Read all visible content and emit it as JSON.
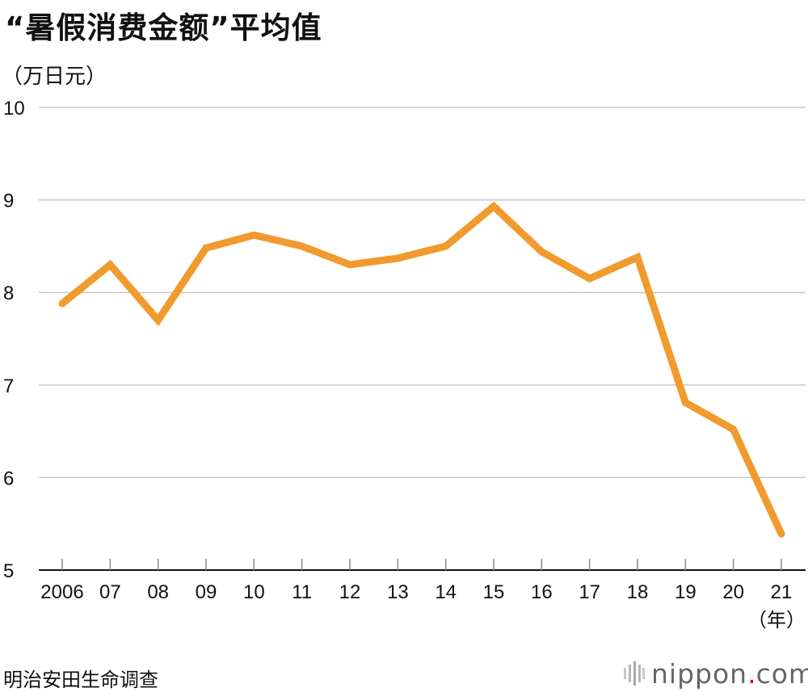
{
  "title": "“暑假消费金额”平均值",
  "unit_label": "（万日元）",
  "source": "明治安田生命调查",
  "brand": {
    "name": "nippon",
    "dot": ".",
    "tld": "com"
  },
  "colors": {
    "line": "#f19a2e",
    "grid": "#c8c8c8",
    "axis": "#111111",
    "brand_dot": "#e60012"
  },
  "chart_data": {
    "type": "line",
    "title": "“暑假消费金额”平均值",
    "ylabel": "（万日元）",
    "xlabel": "（年）",
    "ylim": [
      5,
      10
    ],
    "yticks": [
      5,
      6,
      7,
      8,
      9,
      10
    ],
    "grid": true,
    "categories": [
      "2006",
      "07",
      "08",
      "09",
      "10",
      "11",
      "12",
      "13",
      "14",
      "15",
      "16",
      "17",
      "18",
      "19",
      "20",
      "21"
    ],
    "series": [
      {
        "values": [
          7.88,
          8.3,
          7.7,
          8.48,
          8.62,
          8.5,
          8.3,
          8.37,
          8.5,
          8.93,
          8.44,
          8.15,
          8.38,
          6.81,
          6.52,
          5.39
        ]
      }
    ]
  }
}
